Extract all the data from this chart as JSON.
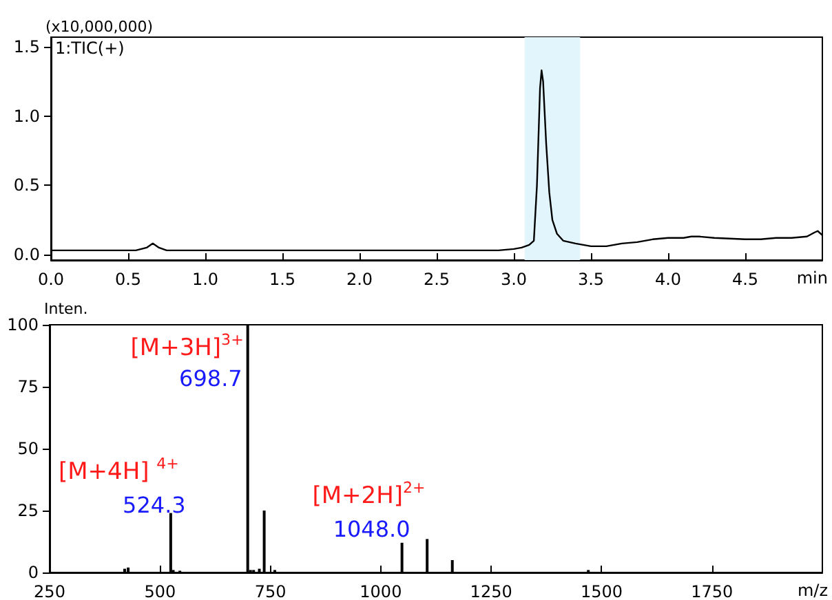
{
  "chart_data": [
    {
      "type": "line",
      "xlabel": "min",
      "ylabel": "(x10,000,000)",
      "annotations": [
        "1:TIC(+)"
      ],
      "series": [
        {
          "color": "#000000",
          "x": [
            0,
            0.2,
            0.4,
            0.55,
            0.62,
            0.66,
            0.7,
            0.75,
            0.8,
            1.0,
            1.5,
            2.0,
            2.5,
            2.9,
            3.0,
            3.05,
            3.1,
            3.13,
            3.15,
            3.17,
            3.18,
            3.19,
            3.21,
            3.23,
            3.25,
            3.28,
            3.32,
            3.4,
            3.5,
            3.6,
            3.7,
            3.8,
            3.9,
            4.0,
            4.1,
            4.15,
            4.2,
            4.3,
            4.5,
            4.6,
            4.7,
            4.8,
            4.9,
            4.95,
            4.97,
            5.0
          ],
          "values": [
            0.03,
            0.03,
            0.03,
            0.03,
            0.05,
            0.08,
            0.05,
            0.03,
            0.03,
            0.03,
            0.03,
            0.03,
            0.03,
            0.03,
            0.04,
            0.05,
            0.07,
            0.1,
            0.5,
            1.2,
            1.33,
            1.25,
            0.8,
            0.45,
            0.25,
            0.15,
            0.1,
            0.08,
            0.06,
            0.06,
            0.08,
            0.09,
            0.11,
            0.12,
            0.12,
            0.13,
            0.13,
            0.12,
            0.11,
            0.11,
            0.12,
            0.12,
            0.13,
            0.16,
            0.17,
            0.14
          ]
        }
      ],
      "xlim": [
        0,
        5.0
      ],
      "xticks": [
        {
          "value": 0,
          "label": "0.0"
        },
        0.5,
        {
          "value": 1,
          "label": "1.0"
        },
        1.5,
        {
          "value": 2,
          "label": "2.0"
        },
        2.5,
        {
          "value": 3,
          "label": "3.0"
        },
        3.5,
        {
          "value": 4,
          "label": "4.0"
        },
        4.5
      ],
      "ylim": [
        -0.04,
        1.57
      ],
      "yticks": [
        {
          "value": 0,
          "label": "0.0"
        },
        0.5,
        {
          "value": 1,
          "label": "1.0"
        },
        1.5
      ],
      "bands": [
        {
          "axis": "x",
          "from": 3.07,
          "to": 3.43,
          "color": "#e2f4fc"
        }
      ],
      "marker": "none"
    },
    {
      "type": "bar",
      "xlabel": "m/z",
      "ylabel": "Inten.",
      "series": [
        {
          "color": "#000000",
          "x": [
            420,
            428,
            524.3,
            530,
            545,
            698.7,
            705,
            712,
            725,
            736,
            760,
            1048,
            1105,
            1162,
            1470
          ],
          "values": [
            1.5,
            2,
            24,
            1,
            0.7,
            100,
            1,
            1,
            1.5,
            25,
            1,
            12,
            13.5,
            5,
            1
          ]
        }
      ],
      "xlim": [
        250,
        2000
      ],
      "xticks": [
        250,
        500,
        750,
        1000,
        1250,
        1500,
        1750
      ],
      "ylim": [
        0,
        100
      ],
      "yticks": [
        0,
        25,
        50,
        75,
        100
      ],
      "annotations": [
        {
          "text": "[M+3H]$^{3+}$",
          "x": 698.7,
          "y": 100
        },
        {
          "text": "698.7",
          "x": 698.7,
          "y": 100
        },
        {
          "text": "[M+4H] $^{4+}$",
          "x": 524.3,
          "y": 24
        },
        {
          "text": "524.3",
          "x": 524.3,
          "y": 24
        },
        {
          "text": "[M+2H]$^{2+}$",
          "x": 1048,
          "y": 12
        },
        {
          "text": "1048.0",
          "x": 1048,
          "y": 12
        }
      ]
    }
  ]
}
